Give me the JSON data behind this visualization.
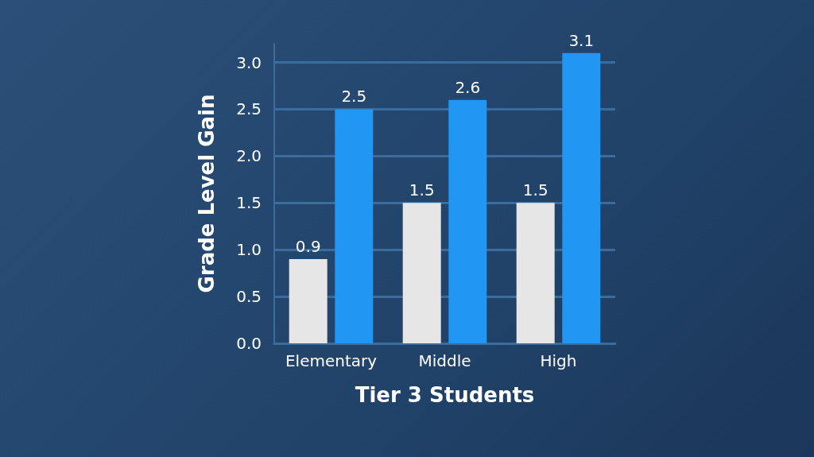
{
  "chart_data": {
    "type": "bar",
    "xlabel": "Tier 3 Students",
    "ylabel": "Grade Level Gain",
    "categories": [
      "Elementary",
      "Middle",
      "High"
    ],
    "series": [
      {
        "color": "#e6e6e6",
        "values": [
          0.9,
          1.5,
          1.5
        ]
      },
      {
        "color": "#2196f3",
        "values": [
          2.5,
          2.6,
          3.1
        ]
      }
    ],
    "ylim": [
      0,
      3.2
    ],
    "yticks": [
      {
        "value": 0,
        "label": "0.0"
      },
      {
        "value": 0.5,
        "label": "0.5"
      },
      {
        "value": 1,
        "label": "1.0"
      },
      {
        "value": 1.5,
        "label": "1.5"
      },
      {
        "value": 2,
        "label": "2.0"
      },
      {
        "value": 2.5,
        "label": "2.5"
      },
      {
        "value": 3,
        "label": "3.0"
      }
    ],
    "grid": "y",
    "data_labels": true
  }
}
